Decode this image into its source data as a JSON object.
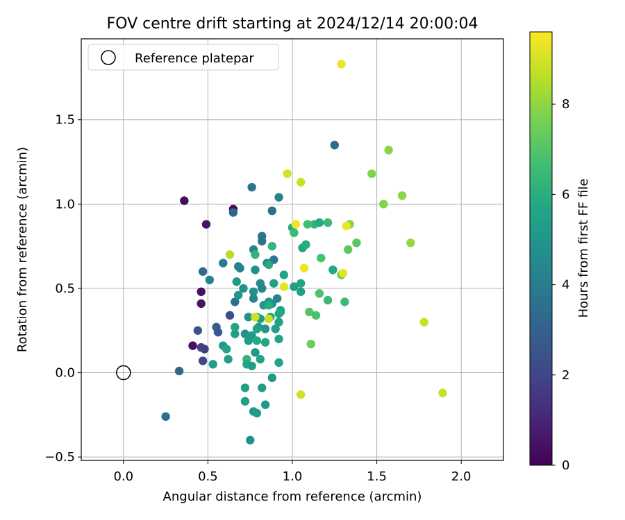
{
  "chart_data": {
    "type": "scatter",
    "title": "FOV centre drift starting at 2024/12/14 20:00:04",
    "xlabel": "Angular distance from reference (arcmin)",
    "ylabel": "Rotation from reference (arcmin)",
    "xlim": [
      -0.25,
      2.25
    ],
    "ylim": [
      -0.52,
      1.98
    ],
    "xticks": [
      0.0,
      0.5,
      1.0,
      1.5,
      2.0
    ],
    "xtick_labels": [
      "0.0",
      "0.5",
      "1.0",
      "1.5",
      "2.0"
    ],
    "yticks": [
      -0.5,
      0.0,
      0.5,
      1.0,
      1.5
    ],
    "ytick_labels": [
      "−0.5",
      "0.0",
      "0.5",
      "1.0",
      "1.5"
    ],
    "grid": true,
    "legend": {
      "placement": "top-left",
      "entries": [
        "Reference platepar"
      ]
    },
    "reference_point": {
      "x": 0.0,
      "y": 0.0
    },
    "colorbar": {
      "label": "Hours from first FF file",
      "colormap": "viridis",
      "range": [
        0,
        9.6
      ],
      "ticks": [
        0,
        2,
        4,
        6,
        8
      ],
      "tick_labels": [
        "0",
        "2",
        "4",
        "6",
        "8"
      ]
    },
    "series": [
      {
        "points": [
          [
            0.36,
            1.02,
            0.3
          ],
          [
            0.65,
            0.97,
            0.3
          ],
          [
            0.49,
            0.88,
            0.5
          ],
          [
            0.46,
            0.48,
            0.4
          ],
          [
            0.46,
            0.41,
            0.5
          ],
          [
            0.41,
            0.16,
            0.4
          ],
          [
            0.46,
            0.15,
            1.8
          ],
          [
            0.48,
            0.14,
            1.7
          ],
          [
            0.47,
            0.07,
            2.0
          ],
          [
            0.33,
            0.01,
            3.2
          ],
          [
            0.25,
            -0.26,
            3.5
          ],
          [
            0.44,
            0.25,
            2.4
          ],
          [
            0.55,
            0.27,
            2.8
          ],
          [
            0.63,
            0.34,
            2.3
          ],
          [
            0.56,
            0.24,
            2.6
          ],
          [
            0.66,
            0.42,
            3.4
          ],
          [
            0.65,
            0.95,
            3.2
          ],
          [
            0.76,
            1.1,
            3.8
          ],
          [
            0.92,
            1.04,
            4.3
          ],
          [
            0.88,
            0.96,
            3.5
          ],
          [
            1.25,
            1.35,
            3.3
          ],
          [
            0.47,
            0.6,
            3.3
          ],
          [
            0.51,
            0.55,
            4.2
          ],
          [
            0.59,
            0.65,
            3.9
          ],
          [
            0.68,
            0.63,
            4.1
          ],
          [
            0.69,
            0.62,
            4.2
          ],
          [
            0.77,
            0.73,
            4.3
          ],
          [
            0.82,
            0.81,
            3.8
          ],
          [
            0.82,
            0.78,
            3.7
          ],
          [
            0.85,
            0.65,
            4.1
          ],
          [
            0.89,
            0.67,
            3.9
          ],
          [
            0.78,
            0.61,
            4.8
          ],
          [
            0.81,
            0.53,
            4.6
          ],
          [
            0.82,
            0.5,
            4.3
          ],
          [
            0.91,
            0.44,
            4.2
          ],
          [
            0.88,
            0.41,
            4.6
          ],
          [
            0.86,
            0.42,
            5.0
          ],
          [
            0.67,
            0.54,
            5.2
          ],
          [
            0.68,
            0.46,
            5.0
          ],
          [
            0.71,
            0.5,
            4.9
          ],
          [
            0.77,
            0.48,
            4.8
          ],
          [
            0.77,
            0.44,
            4.4
          ],
          [
            0.83,
            0.4,
            5.0
          ],
          [
            0.93,
            0.37,
            5.2
          ],
          [
            0.89,
            0.53,
            5.4
          ],
          [
            0.95,
            0.58,
            5.6
          ],
          [
            1.0,
            0.86,
            5.8
          ],
          [
            1.06,
            0.74,
            5.6
          ],
          [
            1.08,
            0.76,
            5.9
          ],
          [
            1.13,
            0.88,
            6.2
          ],
          [
            1.16,
            0.89,
            5.8
          ],
          [
            1.21,
            0.89,
            6.5
          ],
          [
            1.24,
            0.61,
            5.8
          ],
          [
            1.05,
            0.53,
            5.6
          ],
          [
            1.05,
            0.48,
            5.4
          ],
          [
            1.01,
            0.51,
            5.3
          ],
          [
            0.74,
            0.33,
            4.8
          ],
          [
            0.79,
            0.33,
            5.0
          ],
          [
            0.8,
            0.27,
            5.1
          ],
          [
            0.81,
            0.32,
            5.3
          ],
          [
            0.87,
            0.33,
            5.2
          ],
          [
            0.92,
            0.35,
            5.6
          ],
          [
            0.92,
            0.3,
            5.5
          ],
          [
            0.66,
            0.27,
            5.6
          ],
          [
            0.66,
            0.23,
            5.4
          ],
          [
            0.72,
            0.23,
            4.9
          ],
          [
            0.74,
            0.19,
            5.2
          ],
          [
            0.76,
            0.22,
            5.2
          ],
          [
            0.79,
            0.26,
            5.5
          ],
          [
            0.84,
            0.26,
            5.1
          ],
          [
            0.9,
            0.26,
            5.4
          ],
          [
            0.92,
            0.2,
            5.5
          ],
          [
            0.79,
            0.19,
            5.8
          ],
          [
            0.84,
            0.18,
            5.6
          ],
          [
            0.59,
            0.16,
            5.1
          ],
          [
            0.61,
            0.14,
            5.6
          ],
          [
            0.62,
            0.08,
            5.4
          ],
          [
            0.53,
            0.05,
            5.3
          ],
          [
            0.73,
            0.08,
            6.2
          ],
          [
            0.73,
            0.05,
            5.6
          ],
          [
            0.76,
            0.04,
            5.3
          ],
          [
            0.78,
            0.12,
            5.0
          ],
          [
            0.81,
            0.08,
            5.6
          ],
          [
            0.92,
            0.06,
            5.5
          ],
          [
            0.88,
            -0.03,
            5.2
          ],
          [
            0.72,
            -0.09,
            5.4
          ],
          [
            0.82,
            -0.09,
            5.3
          ],
          [
            0.72,
            -0.17,
            5.2
          ],
          [
            0.84,
            -0.19,
            5.0
          ],
          [
            0.77,
            -0.23,
            5.1
          ],
          [
            0.79,
            -0.24,
            5.3
          ],
          [
            0.75,
            -0.4,
            4.9
          ],
          [
            0.93,
            0.36,
            5.7
          ],
          [
            0.86,
            0.4,
            5.9
          ],
          [
            0.88,
            0.75,
            6.3
          ],
          [
            0.78,
            0.7,
            6.2
          ],
          [
            0.86,
            0.64,
            5.9
          ],
          [
            1.01,
            0.83,
            6.5
          ],
          [
            1.09,
            0.88,
            6.6
          ],
          [
            1.17,
            0.68,
            6.8
          ],
          [
            1.16,
            0.47,
            6.8
          ],
          [
            1.21,
            0.43,
            6.5
          ],
          [
            1.1,
            0.36,
            7.0
          ],
          [
            1.14,
            0.34,
            6.8
          ],
          [
            1.11,
            0.17,
            7.4
          ],
          [
            1.31,
            0.42,
            6.5
          ],
          [
            1.33,
            0.73,
            7.2
          ],
          [
            1.38,
            0.77,
            7.1
          ],
          [
            1.29,
            0.58,
            7.3
          ],
          [
            1.34,
            0.88,
            7.8
          ],
          [
            1.47,
            1.18,
            7.8
          ],
          [
            1.57,
            1.32,
            7.9
          ],
          [
            1.54,
            1.0,
            7.8
          ],
          [
            1.65,
            1.05,
            7.9
          ],
          [
            1.7,
            0.77,
            8.1
          ],
          [
            0.63,
            0.7,
            8.6
          ],
          [
            0.78,
            0.33,
            8.9
          ],
          [
            0.86,
            0.32,
            8.8
          ],
          [
            0.95,
            0.51,
            9.2
          ],
          [
            1.02,
            0.88,
            9.4
          ],
          [
            0.97,
            1.18,
            9.0
          ],
          [
            1.05,
            1.13,
            8.8
          ],
          [
            1.07,
            0.62,
            9.3
          ],
          [
            1.05,
            -0.13,
            8.9
          ],
          [
            1.3,
            0.59,
            9.2
          ],
          [
            1.32,
            0.87,
            9.4
          ],
          [
            1.29,
            1.83,
            9.3
          ],
          [
            1.78,
            0.3,
            8.8
          ],
          [
            1.89,
            -0.12,
            8.8
          ]
        ]
      }
    ]
  }
}
